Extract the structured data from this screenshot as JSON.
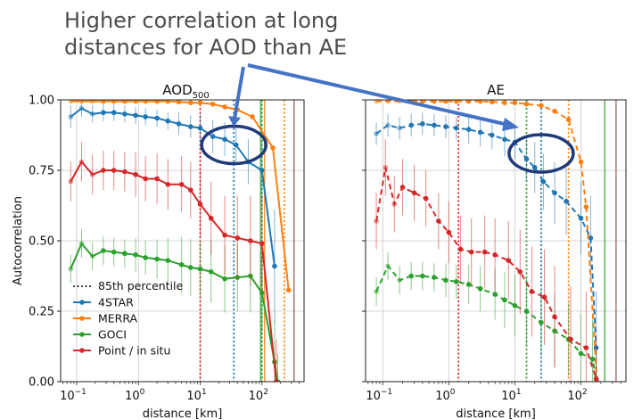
{
  "annotation": {
    "line1": "Higher correlation at long",
    "line2": "distances for AOD than AE"
  },
  "colors": {
    "4STAR": "#1f77b4",
    "MERRA": "#ff7f0e",
    "GOCI": "#2ca02c",
    "Point / in situ": "#d62728",
    "percentile_extra": "#8c564b",
    "ellipse": "#1f3a7a",
    "arrow": "#4472c4"
  },
  "legend": {
    "percentile_label": "85th percentile",
    "entries": [
      "4STAR",
      "MERRA",
      "GOCI",
      "Point / in situ"
    ]
  },
  "chart_data": [
    {
      "type": "line",
      "title": "AOD",
      "title_subscript": "500",
      "xlabel": "distance [km]",
      "ylabel": "Autocorrelation",
      "xscale": "log",
      "xlim": [
        0.055,
        480
      ],
      "ylim": [
        0,
        1.0
      ],
      "xticks": [
        0.1,
        1,
        10,
        100
      ],
      "xtick_labels": [
        "10",
        "10",
        "10",
        "10"
      ],
      "xtick_exponents": [
        "−1",
        "0",
        "1",
        "2"
      ],
      "yticks": [
        0,
        0.25,
        0.5,
        0.75,
        1.0
      ],
      "ytick_labels": [
        "0.00",
        "0.25",
        "0.50",
        "0.75",
        "1.00"
      ],
      "linestyle": "solid",
      "series": [
        {
          "name": "4STAR",
          "x": [
            0.08,
            0.12,
            0.18,
            0.27,
            0.4,
            0.6,
            0.9,
            1.3,
            2.0,
            3.0,
            4.5,
            7.0,
            10,
            16,
            25,
            38,
            60,
            100,
            160
          ],
          "y": [
            0.94,
            0.97,
            0.95,
            0.955,
            0.955,
            0.95,
            0.945,
            0.94,
            0.935,
            0.925,
            0.915,
            0.905,
            0.9,
            0.87,
            0.86,
            0.84,
            0.78,
            0.75,
            0.41
          ],
          "err": [
            0.04,
            0.03,
            0.03,
            0.03,
            0.03,
            0.03,
            0.03,
            0.03,
            0.03,
            0.03,
            0.04,
            0.04,
            0.05,
            0.06,
            0.06,
            0.07,
            0.08,
            0.1,
            0.2
          ]
        },
        {
          "name": "MERRA",
          "x": [
            0.08,
            0.12,
            0.18,
            0.27,
            0.4,
            0.6,
            0.9,
            1.3,
            2.0,
            3.0,
            4.5,
            7.0,
            10,
            16,
            25,
            40,
            70,
            150,
            270
          ],
          "y": [
            0.995,
            0.995,
            0.995,
            0.995,
            0.995,
            0.995,
            0.995,
            0.995,
            0.995,
            0.995,
            0.993,
            0.99,
            0.99,
            0.985,
            0.975,
            0.965,
            0.94,
            0.83,
            0.325
          ],
          "err": [
            0,
            0,
            0,
            0,
            0,
            0,
            0,
            0,
            0,
            0,
            0,
            0,
            0,
            0,
            0,
            0,
            0,
            0,
            0
          ]
        },
        {
          "name": "GOCI",
          "x": [
            0.08,
            0.12,
            0.18,
            0.27,
            0.4,
            0.6,
            0.9,
            1.3,
            2.0,
            3.0,
            5.0,
            7.0,
            10,
            15,
            25,
            40,
            65,
            100,
            160,
            180
          ],
          "y": [
            0.4,
            0.49,
            0.445,
            0.465,
            0.46,
            0.455,
            0.45,
            0.44,
            0.435,
            0.43,
            0.415,
            0.405,
            0.4,
            0.39,
            0.365,
            0.37,
            0.375,
            0.315,
            0.07,
            0.0
          ],
          "err": [
            0.05,
            0.05,
            0.05,
            0.05,
            0.05,
            0.05,
            0.06,
            0.06,
            0.07,
            0.08,
            0.1,
            0.1,
            0.1,
            0.11,
            0.12,
            0.12,
            0.13,
            0.15,
            0.15,
            0.1
          ]
        },
        {
          "name": "Point / in situ",
          "x": [
            0.08,
            0.12,
            0.18,
            0.27,
            0.4,
            0.6,
            0.9,
            1.3,
            2.0,
            3.0,
            5.0,
            7.0,
            10,
            15,
            25,
            40,
            65,
            100,
            170
          ],
          "y": [
            0.71,
            0.78,
            0.735,
            0.75,
            0.75,
            0.745,
            0.735,
            0.72,
            0.72,
            0.7,
            0.7,
            0.68,
            0.63,
            0.58,
            0.52,
            0.51,
            0.5,
            0.49,
            0.0
          ],
          "err": [
            0.07,
            0.07,
            0.07,
            0.07,
            0.07,
            0.07,
            0.08,
            0.08,
            0.09,
            0.09,
            0.1,
            0.1,
            0.12,
            0.13,
            0.14,
            0.15,
            0.16,
            0.17,
            0.15
          ]
        }
      ],
      "percentile_lines": [
        {
          "series": "4STAR",
          "x": 35
        },
        {
          "series": "MERRA",
          "x": 230
        },
        {
          "series": "GOCI",
          "x": 100
        },
        {
          "series": "Point / in situ",
          "x": 10
        }
      ],
      "extra_vlines": [
        {
          "color": "orange",
          "x": 110
        },
        {
          "color": "green",
          "x": 95
        },
        {
          "color": "brown",
          "x": 330
        }
      ],
      "highlight_ellipse": {
        "x": 35,
        "y": 0.84
      }
    },
    {
      "type": "line",
      "title": "AE",
      "xlabel": "distance [km]",
      "ylabel": "",
      "xscale": "log",
      "xlim": [
        0.055,
        480
      ],
      "ylim": [
        0,
        1.0
      ],
      "xticks": [
        0.1,
        1,
        10,
        100
      ],
      "xtick_labels": [
        "10",
        "10",
        "10",
        "10"
      ],
      "xtick_exponents": [
        "−1",
        "0",
        "1",
        "2"
      ],
      "linestyle": "dashed",
      "series": [
        {
          "name": "4STAR",
          "x": [
            0.08,
            0.12,
            0.18,
            0.27,
            0.4,
            0.6,
            0.9,
            1.3,
            2.0,
            3.0,
            4.5,
            7.0,
            10,
            15,
            20,
            27,
            40,
            60,
            100,
            140,
            170
          ],
          "y": [
            0.88,
            0.91,
            0.9,
            0.91,
            0.915,
            0.91,
            0.905,
            0.9,
            0.895,
            0.885,
            0.875,
            0.86,
            0.85,
            0.79,
            0.76,
            0.71,
            0.67,
            0.64,
            0.58,
            0.51,
            0.12
          ],
          "err": [
            0.04,
            0.04,
            0.04,
            0.04,
            0.04,
            0.04,
            0.04,
            0.04,
            0.05,
            0.05,
            0.05,
            0.06,
            0.06,
            0.08,
            0.09,
            0.1,
            0.11,
            0.12,
            0.13,
            0.15,
            0.2
          ]
        },
        {
          "name": "MERRA",
          "x": [
            0.08,
            0.12,
            0.18,
            0.27,
            0.4,
            0.6,
            0.9,
            1.3,
            2.0,
            3.0,
            4.5,
            7.0,
            10,
            15,
            25,
            40,
            65,
            100,
            120,
            175
          ],
          "y": [
            0.995,
            0.995,
            0.995,
            0.995,
            0.995,
            0.995,
            0.995,
            0.995,
            0.995,
            0.995,
            0.993,
            0.99,
            0.99,
            0.985,
            0.98,
            0.96,
            0.93,
            0.78,
            0.62,
            0.0
          ],
          "err": [
            0,
            0,
            0,
            0,
            0,
            0,
            0,
            0,
            0,
            0,
            0,
            0,
            0,
            0,
            0,
            0,
            0,
            0,
            0,
            0
          ]
        },
        {
          "name": "GOCI",
          "x": [
            0.08,
            0.12,
            0.18,
            0.27,
            0.4,
            0.6,
            0.9,
            1.3,
            2.0,
            3.0,
            5.0,
            7.0,
            10,
            15,
            25,
            40,
            65,
            100,
            150,
            170
          ],
          "y": [
            0.32,
            0.41,
            0.36,
            0.375,
            0.375,
            0.37,
            0.36,
            0.355,
            0.345,
            0.33,
            0.31,
            0.29,
            0.27,
            0.25,
            0.21,
            0.18,
            0.15,
            0.1,
            0.08,
            0.01
          ],
          "err": [
            0.05,
            0.05,
            0.05,
            0.05,
            0.05,
            0.05,
            0.06,
            0.06,
            0.07,
            0.08,
            0.09,
            0.1,
            0.11,
            0.12,
            0.12,
            0.13,
            0.13,
            0.14,
            0.14,
            0.1
          ]
        },
        {
          "name": "Point / in situ",
          "x": [
            0.08,
            0.11,
            0.15,
            0.2,
            0.3,
            0.45,
            0.7,
            1.0,
            1.5,
            2.2,
            3.5,
            5.0,
            8.0,
            12,
            18,
            28,
            40,
            70,
            120,
            170
          ],
          "y": [
            0.57,
            0.76,
            0.63,
            0.69,
            0.67,
            0.65,
            0.57,
            0.53,
            0.47,
            0.46,
            0.46,
            0.45,
            0.43,
            0.39,
            0.32,
            0.3,
            0.23,
            0.15,
            0.12,
            0.01
          ],
          "err": [
            0.1,
            0.1,
            0.1,
            0.1,
            0.1,
            0.1,
            0.1,
            0.11,
            0.12,
            0.12,
            0.13,
            0.13,
            0.14,
            0.15,
            0.16,
            0.17,
            0.18,
            0.19,
            0.2,
            0.15
          ]
        }
      ],
      "percentile_lines": [
        {
          "series": "4STAR",
          "x": 25
        },
        {
          "series": "MERRA",
          "x": 65
        },
        {
          "series": "GOCI",
          "x": 15
        },
        {
          "series": "Point / in situ",
          "x": 1.4
        }
      ],
      "extra_vlines": [
        {
          "color": "green",
          "x": 230
        },
        {
          "color": "brown",
          "x": 340
        }
      ],
      "highlight_ellipse": {
        "x": 25,
        "y": 0.81
      }
    }
  ]
}
